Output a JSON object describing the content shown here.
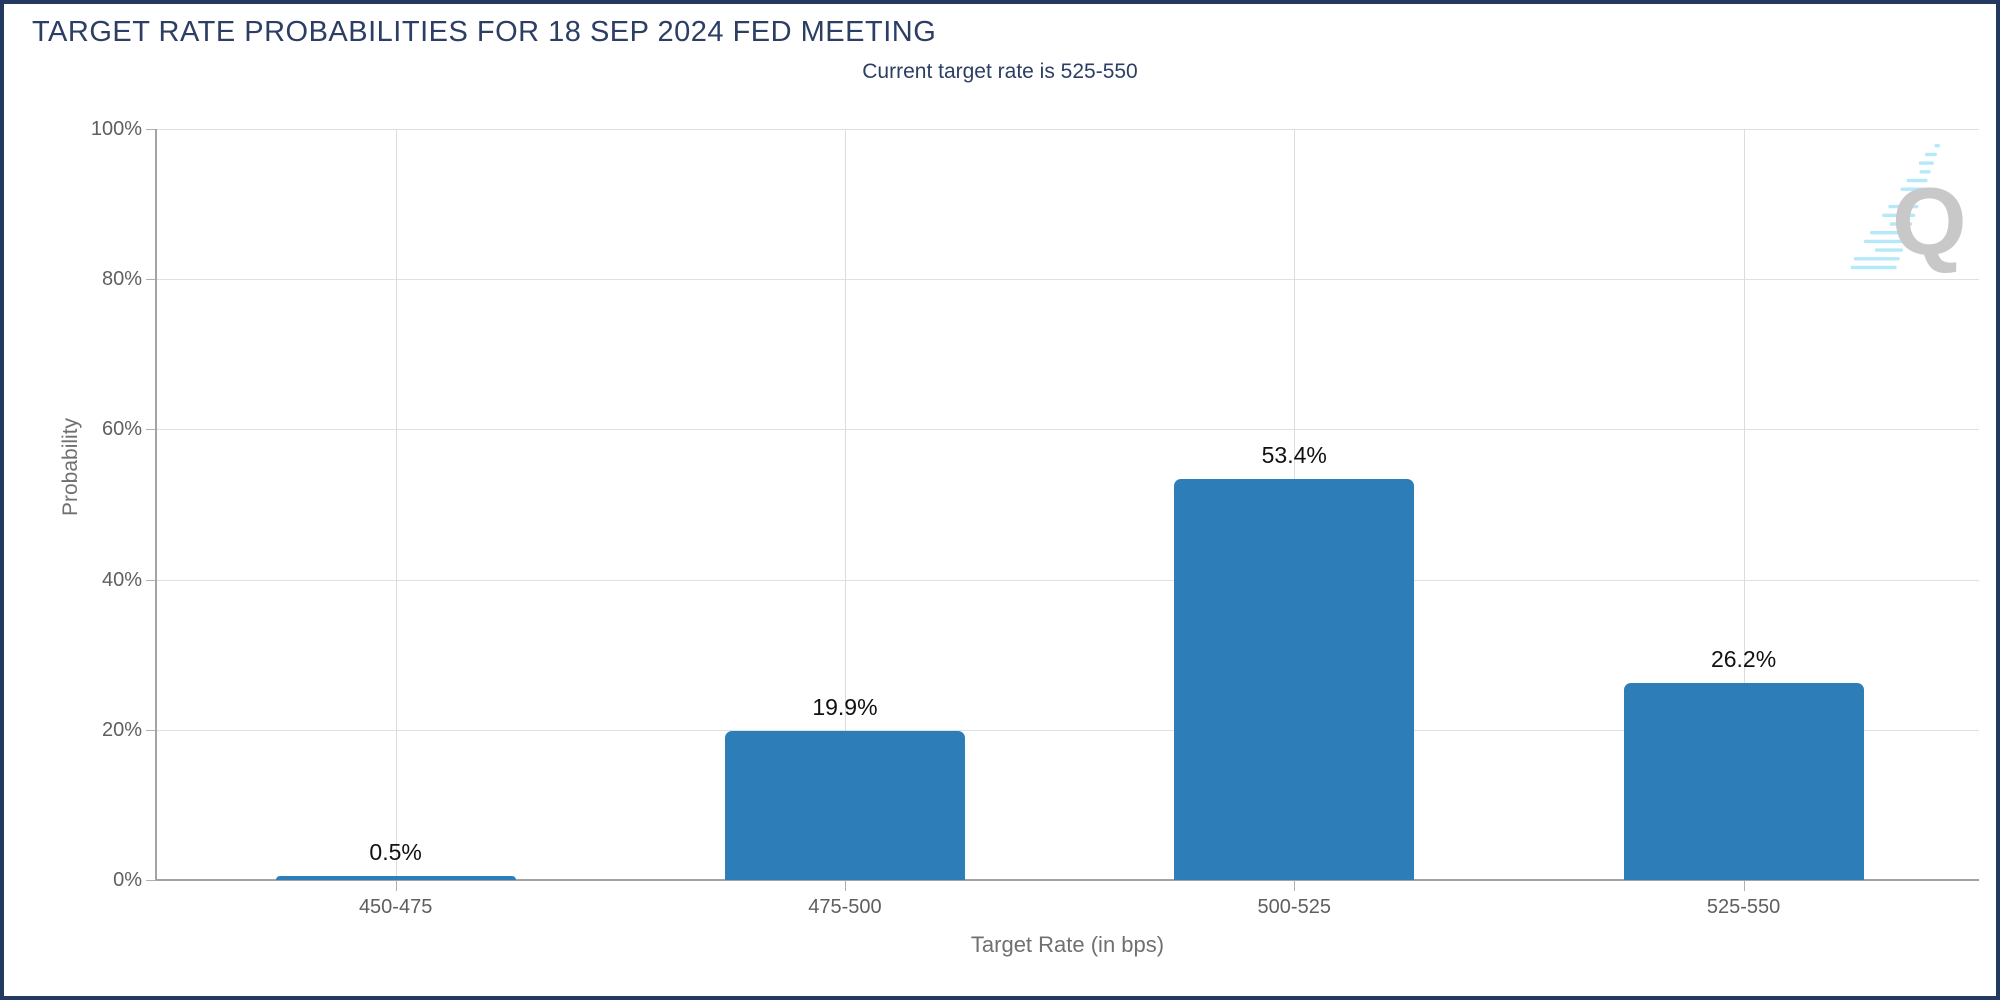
{
  "title": "TARGET RATE PROBABILITIES FOR 18 SEP 2024 FED MEETING",
  "subtitle": "Current target rate is 525-550",
  "chart_data": {
    "type": "bar",
    "categories": [
      "450-475",
      "475-500",
      "500-525",
      "525-550"
    ],
    "values": [
      0.5,
      19.9,
      53.4,
      26.2
    ],
    "value_labels": [
      "0.5%",
      "19.9%",
      "53.4%",
      "26.2%"
    ],
    "title": "TARGET RATE PROBABILITIES FOR 18 SEP 2024 FED MEETING",
    "subtitle": "Current target rate is 525-550",
    "xlabel": "Target Rate (in bps)",
    "ylabel": "Probability",
    "ylim": [
      0,
      100
    ],
    "ytick_values": [
      0,
      20,
      40,
      60,
      80,
      100
    ],
    "ytick_labels": [
      "0%",
      "20%",
      "40%",
      "60%",
      "80%",
      "100%"
    ],
    "grid": true,
    "legend": "none",
    "bar_color": "#2d7eb8"
  },
  "colors": {
    "title_text": "#2c3e63",
    "frame_border": "#24395f",
    "bar": "#2d7eb8",
    "axis_text": "#5f5f5f",
    "axis_line": "#a3a3a3",
    "gridline": "#e0e0e0",
    "watermark_letter": "#c8c8c8",
    "watermark_dashes": "#b5e9f7"
  },
  "watermark": {
    "letter": "Q"
  }
}
